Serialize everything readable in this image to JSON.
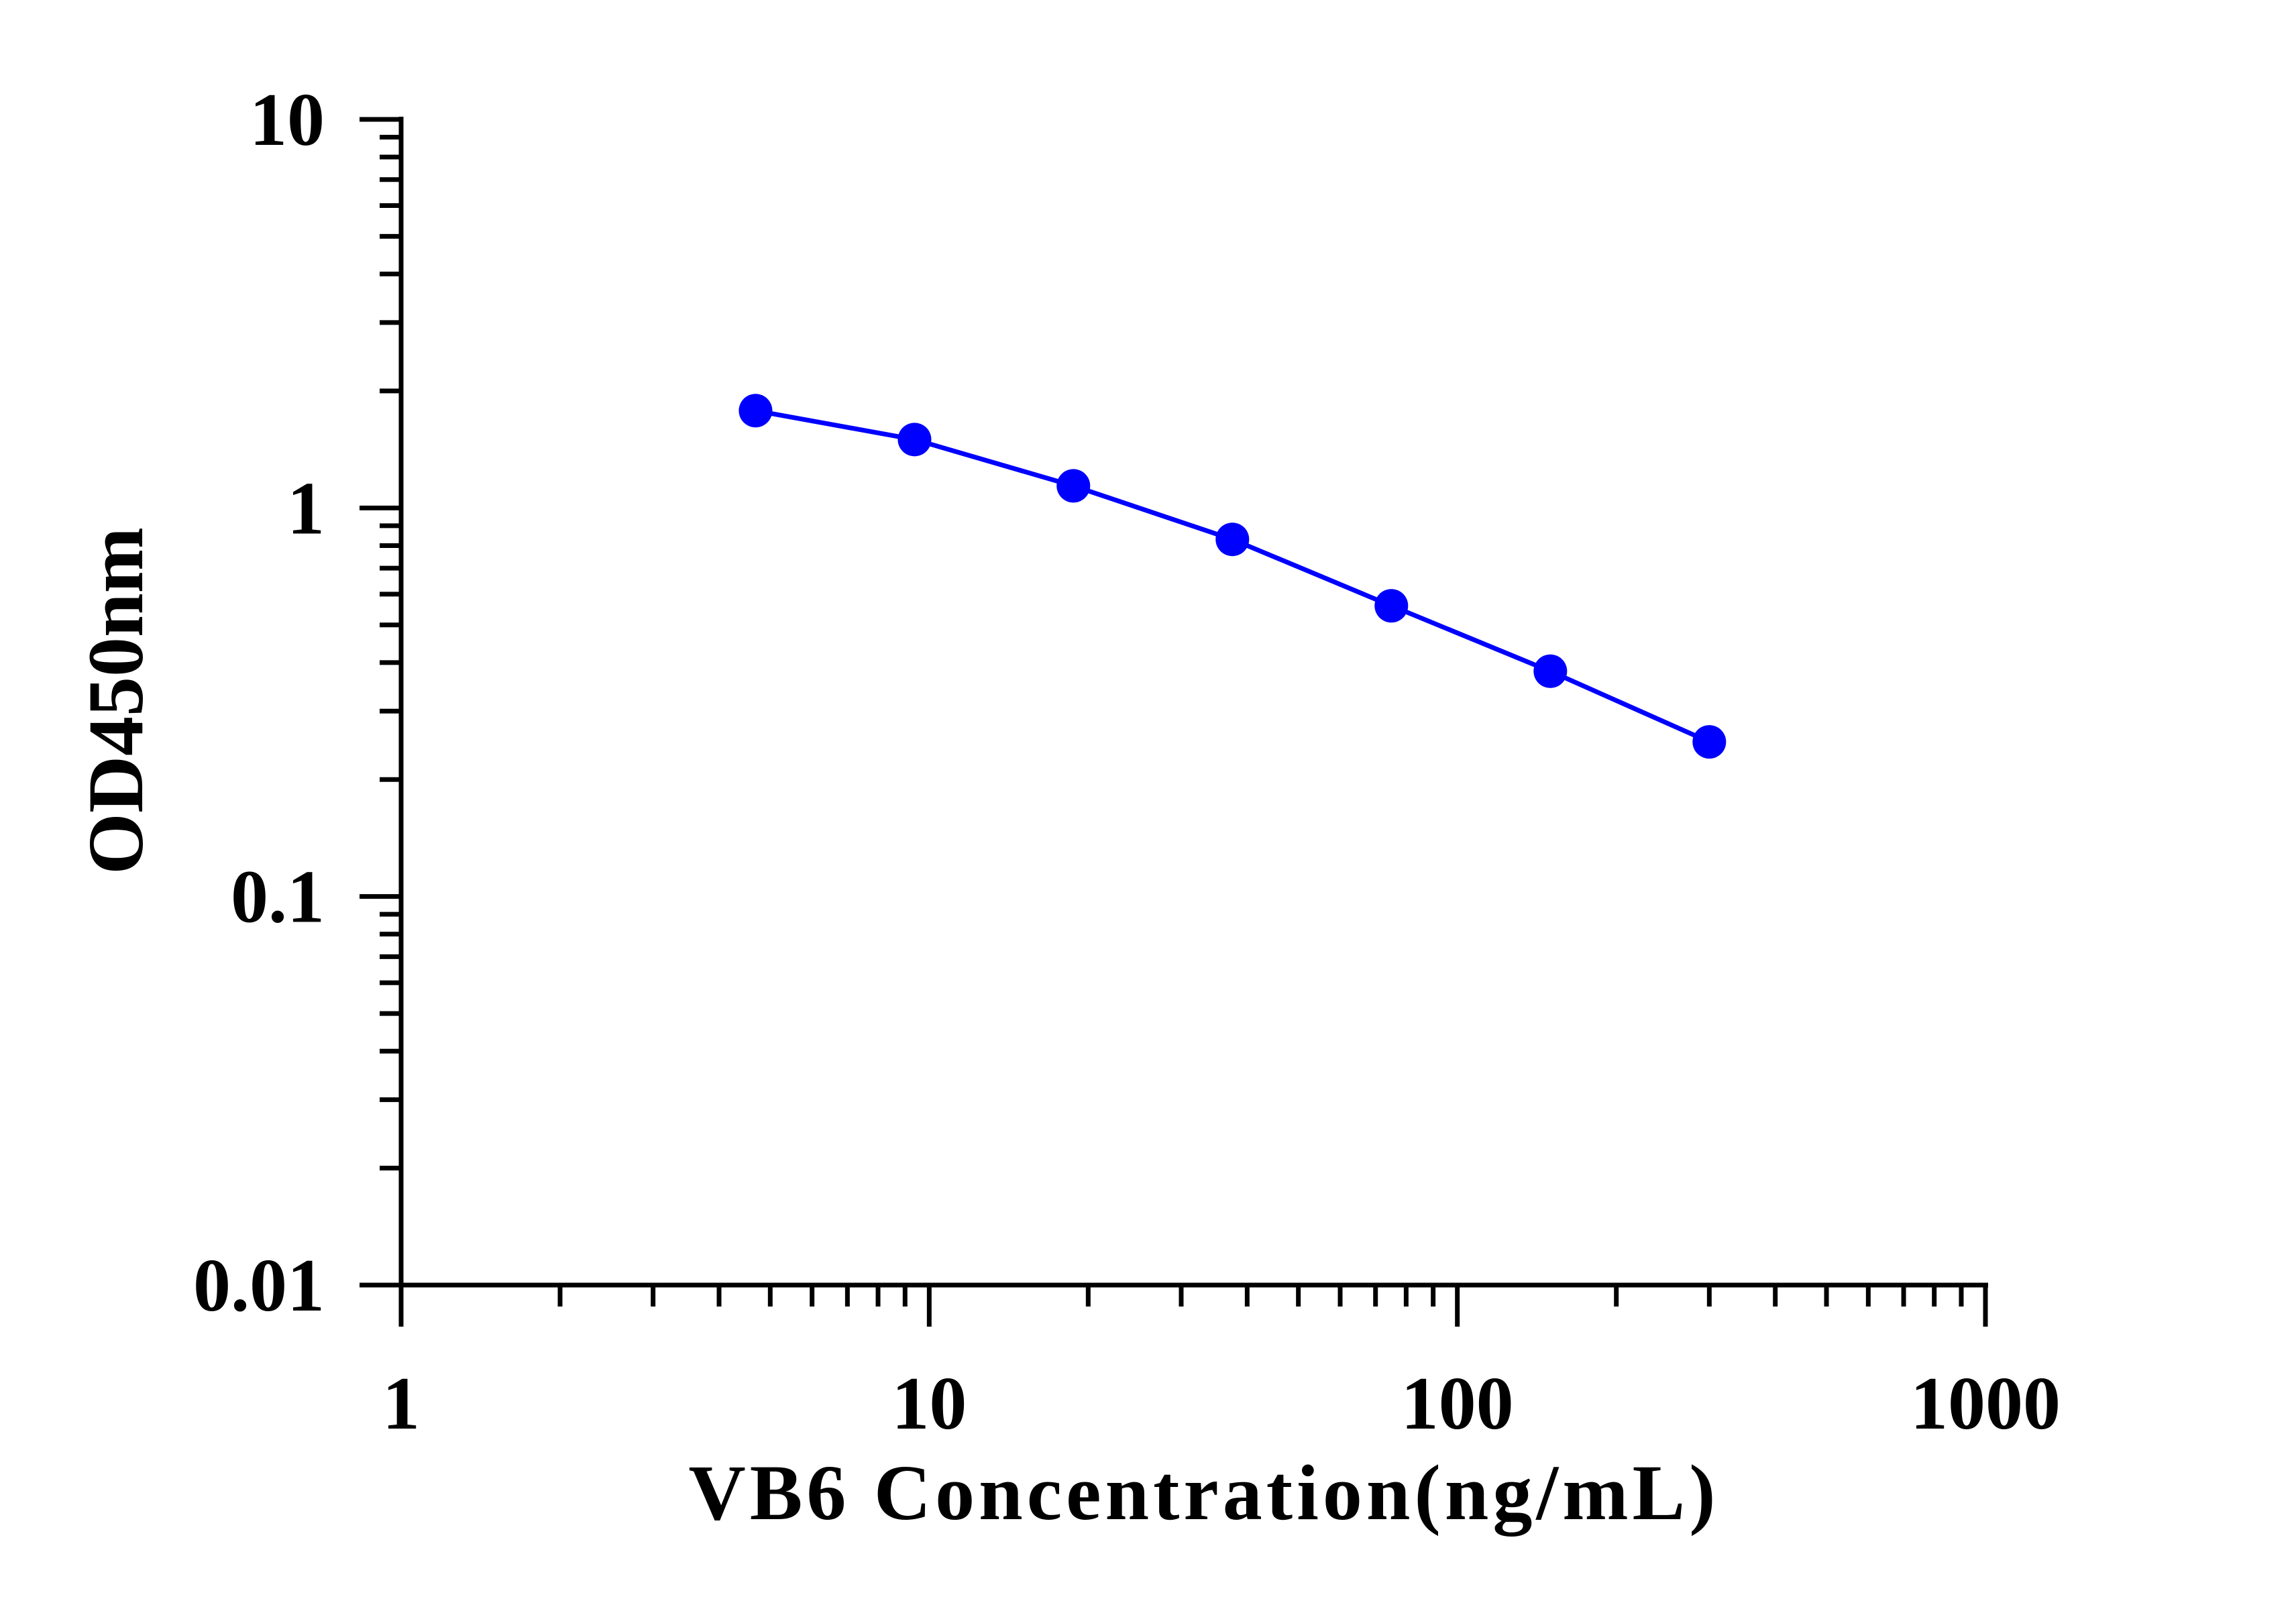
{
  "chart_data": {
    "type": "line",
    "xlabel": "VB6 Concentration(ng/mL)",
    "ylabel": "OD450nm",
    "x_scale": "log",
    "y_scale": "log",
    "xlim": [
      1,
      1000
    ],
    "ylim": [
      0.01,
      10
    ],
    "x_ticks": [
      "1",
      "10",
      "100",
      "1000"
    ],
    "y_ticks": [
      "0.01",
      "0.1",
      "1",
      "10"
    ],
    "grid": false,
    "legend": "none",
    "series": [
      {
        "color": "#0000ff",
        "marker": "circle",
        "points": [
          {
            "x": 4.69,
            "y": 1.78
          },
          {
            "x": 9.38,
            "y": 1.5
          },
          {
            "x": 18.75,
            "y": 1.14
          },
          {
            "x": 37.5,
            "y": 0.83
          },
          {
            "x": 75,
            "y": 0.56
          },
          {
            "x": 150,
            "y": 0.38
          },
          {
            "x": 300,
            "y": 0.25
          }
        ]
      }
    ]
  }
}
